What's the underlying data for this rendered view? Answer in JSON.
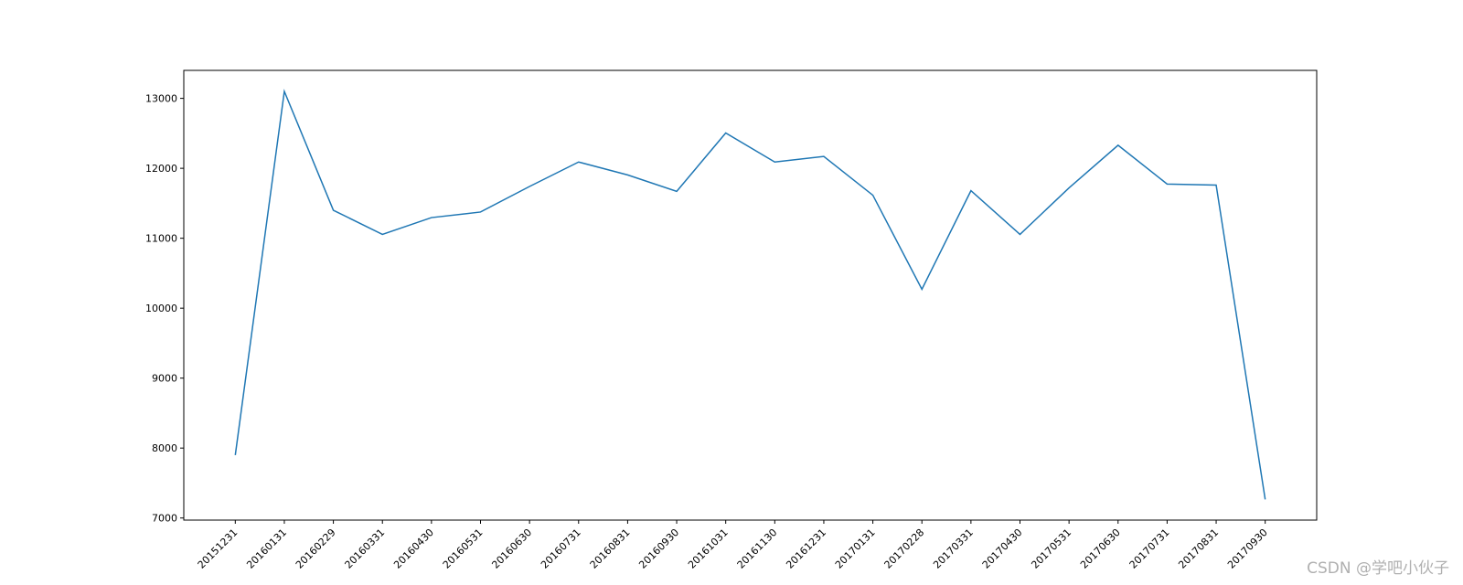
{
  "chart_data": {
    "type": "line",
    "categories": [
      "20151231",
      "20160131",
      "20160229",
      "20160331",
      "20160430",
      "20160531",
      "20160630",
      "20160731",
      "20160831",
      "20160930",
      "20161031",
      "20161130",
      "20161231",
      "20170131",
      "20170228",
      "20170331",
      "20170430",
      "20170531",
      "20170630",
      "20170731",
      "20170831",
      "20170930"
    ],
    "series": [
      {
        "color": "#1f77b4",
        "values": [
          7900,
          13100,
          11400,
          11055,
          11295,
          11375,
          11740,
          12090,
          11905,
          11670,
          12505,
          12090,
          12170,
          11615,
          10270,
          11680,
          11055,
          11720,
          12330,
          11775,
          11760,
          7265
        ]
      }
    ],
    "ylim": [
      6970,
      13400
    ],
    "yticks": [
      7000,
      8000,
      9000,
      10000,
      11000,
      12000,
      13000
    ],
    "watermark": "CSDN @学吧小伙子"
  }
}
